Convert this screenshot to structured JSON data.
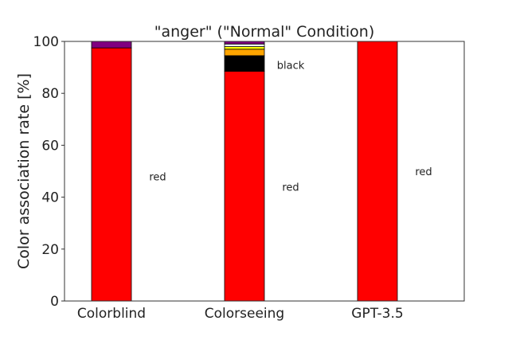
{
  "chart_data": {
    "type": "bar",
    "stacked": true,
    "title": "\"anger\" (\"Normal\" Condition)",
    "xlabel": "",
    "ylabel": "Color association rate [%]",
    "ylim": [
      0,
      100
    ],
    "yticks": [
      0,
      20,
      40,
      60,
      80,
      100
    ],
    "grid": false,
    "legend": "none",
    "categories": [
      "Colorblind",
      "Colorseeing",
      "GPT-3.5"
    ],
    "series": [
      {
        "color": "#ff0000",
        "values": [
          97.5,
          88.5,
          100
        ]
      },
      {
        "color": "#000000",
        "values": [
          0,
          6,
          0
        ]
      },
      {
        "color": "#ffa500",
        "values": [
          0,
          2.5,
          0
        ]
      },
      {
        "color": "#ffff00",
        "values": [
          0,
          1,
          0
        ]
      },
      {
        "color": "#ffffff",
        "values": [
          0,
          1,
          0
        ]
      },
      {
        "color": "#800080",
        "values": [
          2.5,
          1,
          0
        ]
      }
    ],
    "annotations": [
      {
        "category": "Colorblind",
        "text": "red",
        "y": 48
      },
      {
        "category": "Colorseeing",
        "text": "red",
        "y": 44
      },
      {
        "category": "Colorseeing",
        "text": "black",
        "y": 91
      },
      {
        "category": "GPT-3.5",
        "text": "red",
        "y": 50
      }
    ]
  }
}
